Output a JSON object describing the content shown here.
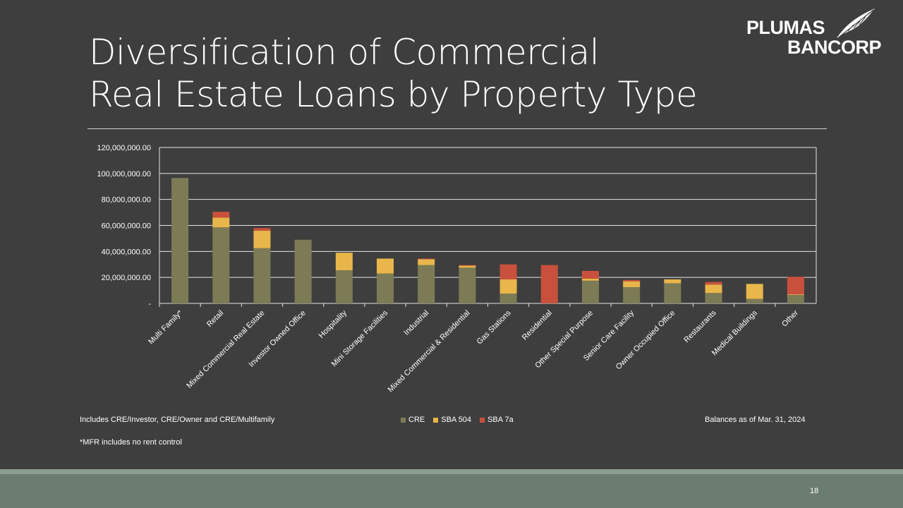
{
  "slide": {
    "title_line1": "Diversification of Commercial",
    "title_line2": "Real Estate Loans by Property Type",
    "page_number": "18"
  },
  "logo": {
    "line1": "PLUMAS",
    "line2": "BANCORP"
  },
  "footnotes": {
    "includes": "Includes CRE/Investor, CRE/Owner  and CRE/Multifamily",
    "mfr": "*MFR includes no rent control",
    "balances": "Balances as of Mar. 31, 2024"
  },
  "colors": {
    "background": "#3e3e3e",
    "cre": "#7d7b55",
    "sba504": "#e8b64a",
    "sba7a": "#c9503c",
    "band": "#6b7c70"
  },
  "chart_data": {
    "type": "bar",
    "stacked": true,
    "categories": [
      "Multi Family*",
      "Retail",
      "Mixed Commercial Real Estate",
      "Investor Owned Office",
      "Hospitality",
      "Mini Storage Facilities",
      "Industrial",
      "Mixed Commercial & Residential",
      "Gas Stations",
      "Residential",
      "Other Special Purpose",
      "Senior Care Facility",
      "Owner Occupied Office",
      "Restaurants",
      "Medical Buildings",
      "Other"
    ],
    "series": [
      {
        "name": "CRE",
        "values": [
          96500000,
          58500000,
          42500000,
          49000000,
          25500000,
          23000000,
          29500000,
          27500000,
          7500000,
          0,
          17500000,
          12500000,
          15500000,
          8000000,
          3500000,
          6500000
        ]
      },
      {
        "name": "SBA 504",
        "values": [
          0,
          7500000,
          13500000,
          0,
          13500000,
          11500000,
          4500000,
          1500000,
          11000000,
          0,
          1500000,
          4500000,
          3000000,
          6500000,
          11500000,
          500000
        ]
      },
      {
        "name": "SBA 7a",
        "values": [
          0,
          4500000,
          2000000,
          0,
          0,
          0,
          500000,
          500000,
          11500000,
          29500000,
          6000000,
          1000000,
          0,
          2000000,
          0,
          13500000
        ]
      }
    ],
    "yticks": [
      "-",
      "20,000,000.00",
      "40,000,000.00",
      "60,000,000.00",
      "80,000,000.00",
      "100,000,000.00",
      "120,000,000.00"
    ],
    "ylim": [
      0,
      120000000
    ],
    "grid": true,
    "legend": "bottom"
  }
}
